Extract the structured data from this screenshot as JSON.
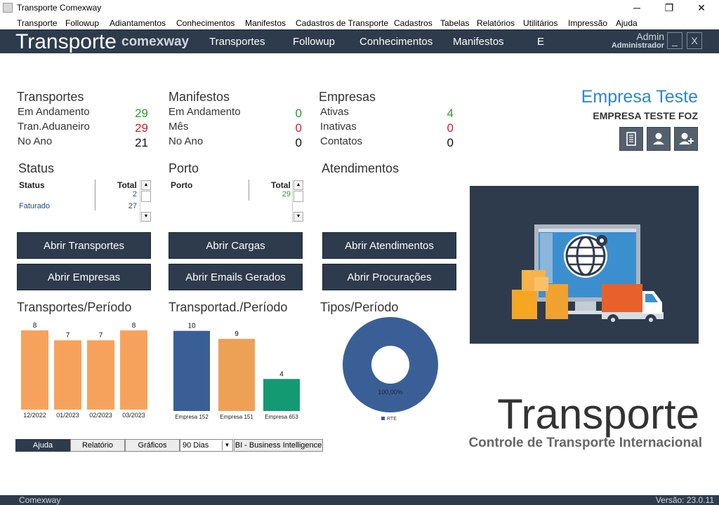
{
  "window": {
    "title": "Transporte Comexway",
    "minimize": "─",
    "maximize": "❐",
    "close": "✕"
  },
  "menu": [
    "Transporte",
    "Followup",
    "Adiantamentos",
    "Conhecimentos",
    "Manifestos",
    "Cadastros de Transporte",
    "Cadastros",
    "Tabelas",
    "Relatórios",
    "Utilitários",
    "Impressão",
    "Ajuda"
  ],
  "header": {
    "brand": "Transporte",
    "brand_sub": "comexway",
    "nav": [
      "Transportes",
      "Followup",
      "Conhecimentos",
      "Manifestos",
      "E"
    ],
    "user_name": "Admin",
    "user_role": "Administrador",
    "min_label": "_",
    "close_label": "X"
  },
  "stats": {
    "transportes": {
      "title": "Transportes",
      "rows": [
        {
          "label": "Em Andamento",
          "value": "29",
          "color": "#2a9a2a"
        },
        {
          "label": "Tran.Aduaneiro",
          "value": "29",
          "color": "#d62020"
        },
        {
          "label": "No Ano",
          "value": "21",
          "color": "#111111"
        }
      ]
    },
    "manifestos": {
      "title": "Manifestos",
      "rows": [
        {
          "label": "Em Andamento",
          "value": "0",
          "color": "#2a9a2a"
        },
        {
          "label": "Mês",
          "value": "0",
          "color": "#d62020"
        },
        {
          "label": "No Ano",
          "value": "0",
          "color": "#111111"
        }
      ]
    },
    "empresas": {
      "title": "Empresas",
      "rows": [
        {
          "label": "Ativas",
          "value": "4",
          "color": "#2a9a2a"
        },
        {
          "label": "Inativas",
          "value": "0",
          "color": "#d62020"
        },
        {
          "label": "Contatos",
          "value": "0",
          "color": "#111111"
        }
      ]
    }
  },
  "company": {
    "name": "Empresa Teste",
    "sub": "EMPRESA TESTE FOZ",
    "buttons": [
      "building-icon",
      "user-icon",
      "add-user-icon"
    ]
  },
  "grids": {
    "status": {
      "title": "Status",
      "col1": "Status",
      "col2": "Total",
      "rows": [
        {
          "name": "",
          "total": "2"
        },
        {
          "name": "Faturado",
          "total": "27"
        }
      ]
    },
    "porto": {
      "title": "Porto",
      "col1": "Porto",
      "col2": "Total",
      "rows": [
        {
          "name": "",
          "total": "29"
        }
      ]
    },
    "atendimentos": {
      "title": "Atendimentos"
    }
  },
  "actions": [
    [
      "Abrir Transportes",
      "Abrir Cargas",
      "Abrir Atendimentos"
    ],
    [
      "Abrir Empresas",
      "Abrir Emails Gerados",
      "Abrir Procurações"
    ]
  ],
  "charts": {
    "periodo": {
      "title": "Transportes/Período"
    },
    "transportadoras": {
      "title": "Transportad./Período"
    },
    "tipos": {
      "title": "Tipos/Período"
    }
  },
  "chart_data": [
    {
      "type": "bar",
      "title": "Transportes/Período",
      "categories": [
        "12/2022",
        "01/2023",
        "02/2023",
        "03/2023"
      ],
      "values": [
        8,
        7,
        7,
        8
      ],
      "colors": [
        "#f7a25c",
        "#f7a25c",
        "#f7a25c",
        "#f7a25c"
      ],
      "ylim": [
        0,
        8.5
      ]
    },
    {
      "type": "bar",
      "title": "Transportad./Período",
      "categories": [
        "Empresa 152",
        "Empresa 151",
        "Empresa 653"
      ],
      "values": [
        10,
        9,
        4
      ],
      "colors": [
        "#3a5f96",
        "#eda157",
        "#139a72"
      ],
      "ylim": [
        0,
        10.5
      ]
    },
    {
      "type": "pie",
      "title": "Tipos/Período",
      "labels": [
        "RTE"
      ],
      "values": [
        100
      ],
      "percent_labels": [
        "100,00%"
      ],
      "colors": [
        "#3a5f96"
      ],
      "donut": true
    }
  ],
  "bottom_tabs": {
    "ajuda": "Ajuda",
    "relatorio": "Relatório",
    "graficos": "Gráficos",
    "period": "90 Dias",
    "bi": "BI - Business Intelligence"
  },
  "hero": {
    "title": "Transporte",
    "subtitle": "Controle de Transporte Internacional"
  },
  "footer": {
    "left": "Comexway",
    "right": "Versão: 23.0.11"
  }
}
